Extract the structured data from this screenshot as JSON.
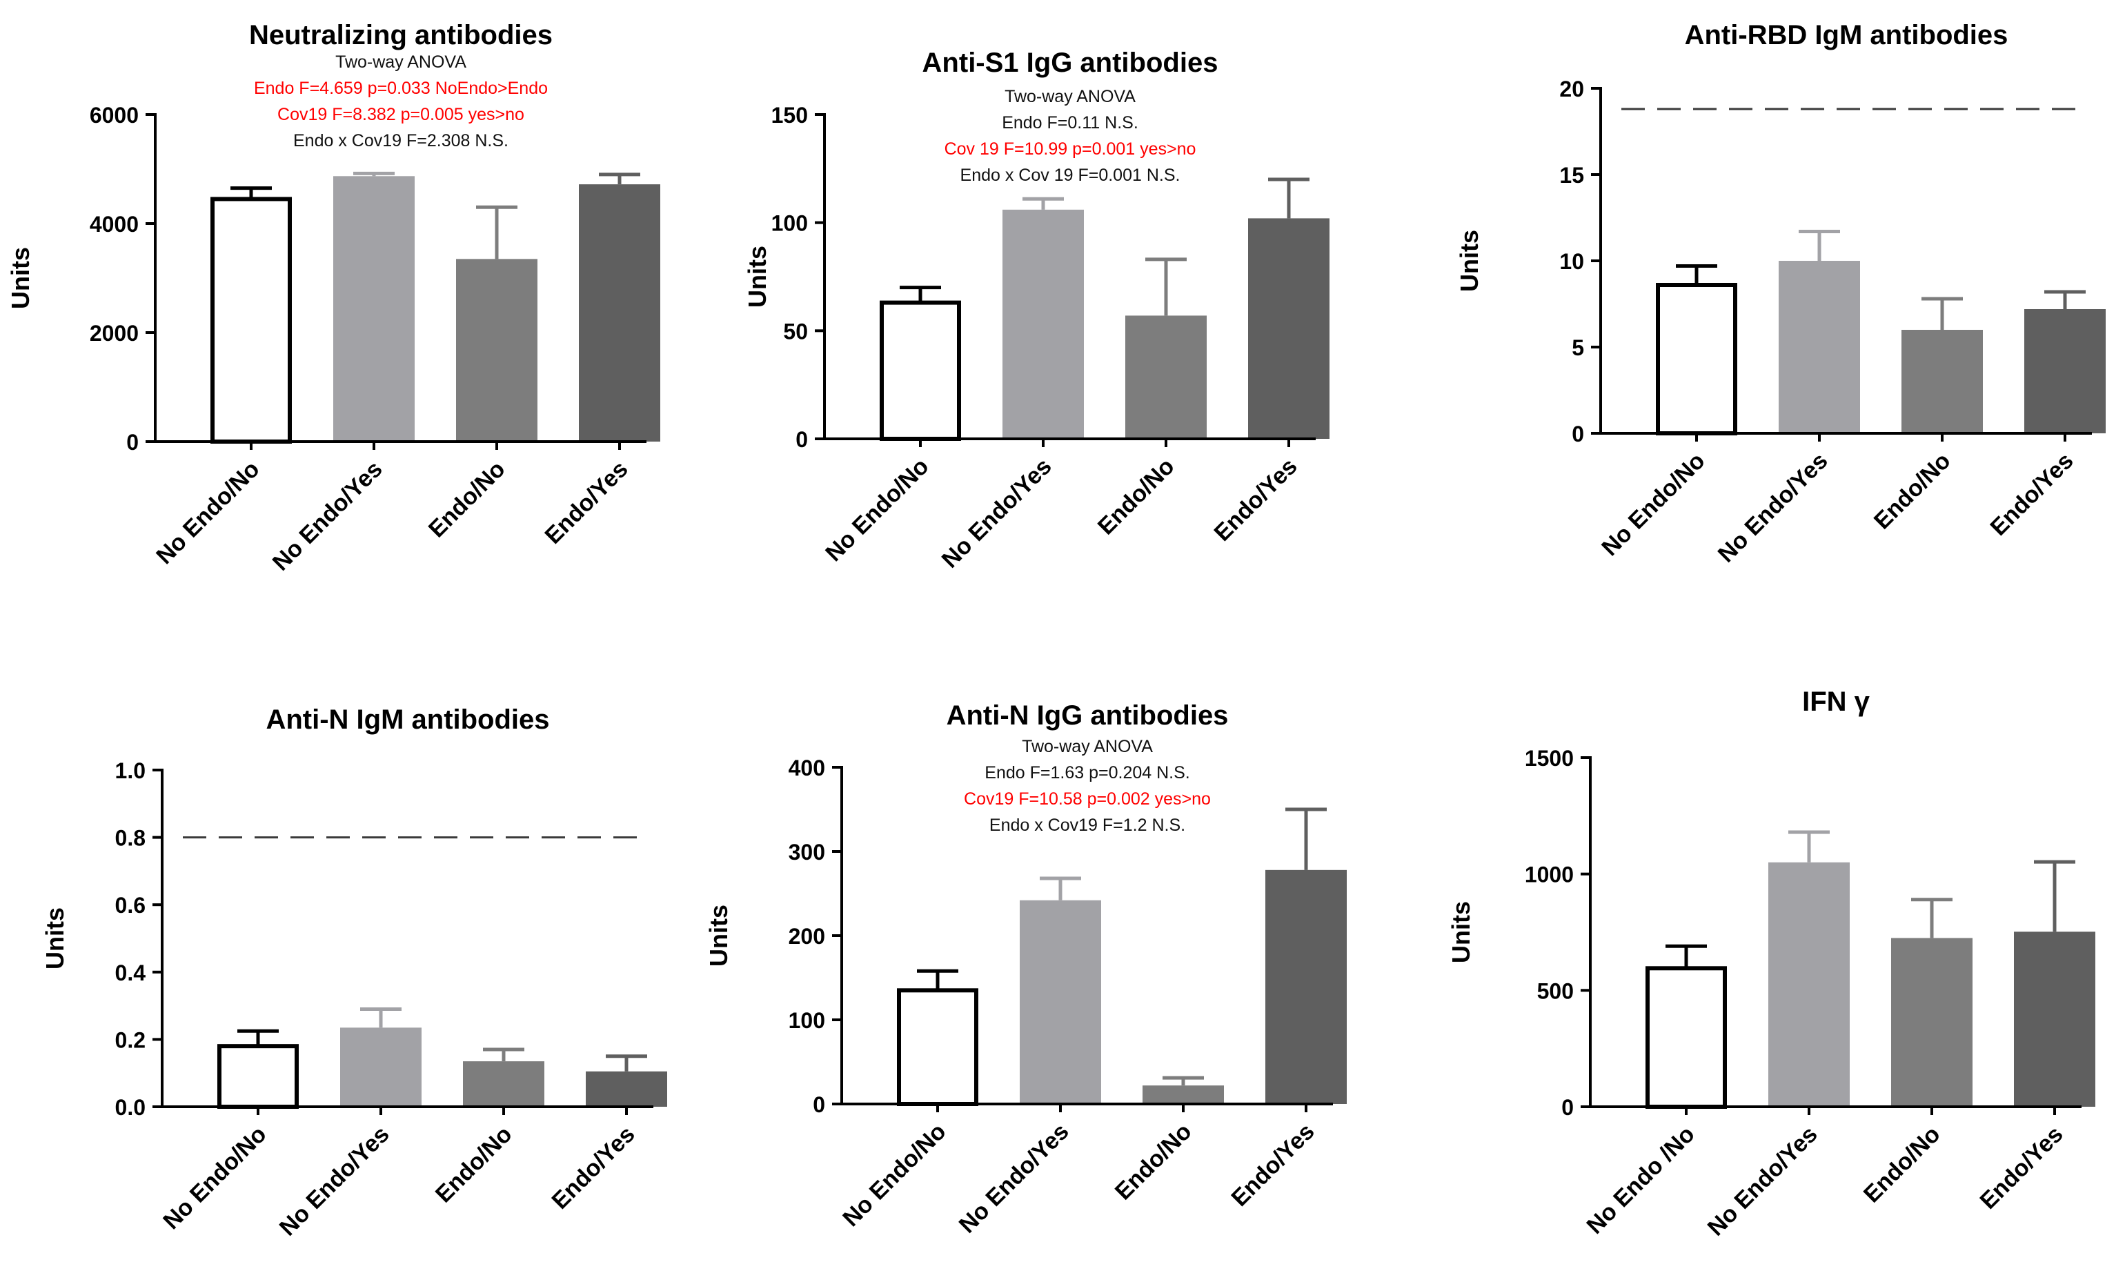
{
  "colors": {
    "bars": [
      "#ffffff",
      "#a2a2a6",
      "#7d7d7d",
      "#5f5f5f"
    ],
    "outline": "#000000",
    "stat_red": "#ff0000",
    "stat_black": "#111111",
    "reference_line": "#3a3a3a"
  },
  "chart_data": [
    {
      "type": "bar",
      "title": "Neutralizing antibodies",
      "ylabel": "Units",
      "categories": [
        "No Endo/No",
        "No Endo/Yes",
        "Endo/No",
        "Endo/Yes"
      ],
      "values": [
        4450,
        4870,
        3350,
        4720
      ],
      "errors": [
        200,
        50,
        950,
        180
      ],
      "ylim": [
        0,
        6000
      ],
      "yticks": [
        "0",
        "2000",
        "4000",
        "6000"
      ],
      "ytick_values": [
        0,
        2000,
        4000,
        6000
      ],
      "reference_line": null,
      "annotations": [
        {
          "text": "Two-way ANOVA",
          "color": "black"
        },
        {
          "text": "Endo   F=4.659 p=0.033 NoEndo>Endo",
          "color": "red"
        },
        {
          "text": "Cov19 F=8.382 p=0.005      yes>no",
          "color": "red"
        },
        {
          "text": "Endo x Cov19 F=2.308 N.S.",
          "color": "black"
        }
      ]
    },
    {
      "type": "bar",
      "title": "Anti-S1 IgG antibodies",
      "ylabel": "Units",
      "categories": [
        "No Endo/No",
        "No Endo/Yes",
        "Endo/No",
        "Endo/Yes"
      ],
      "values": [
        63,
        106,
        57,
        102
      ],
      "errors": [
        7,
        5,
        26,
        18
      ],
      "ylim": [
        0,
        150
      ],
      "yticks": [
        "0",
        "50",
        "100",
        "150"
      ],
      "ytick_values": [
        0,
        50,
        100,
        150
      ],
      "reference_line": null,
      "annotations": [
        {
          "text": "Two-way ANOVA",
          "color": "black"
        },
        {
          "text": "Endo   F=0.11 N.S.",
          "color": "black"
        },
        {
          "text": "Cov 19 F=10.99 p=0.001 yes>no",
          "color": "red"
        },
        {
          "text": "Endo  x Cov 19 F=0.001 N.S.",
          "color": "black"
        }
      ]
    },
    {
      "type": "bar",
      "title": "Anti-RBD IgM antibodies",
      "ylabel": "Units",
      "categories": [
        "No Endo/No",
        "No Endo/Yes",
        "Endo/No",
        "Endo/Yes"
      ],
      "values": [
        8.6,
        10.0,
        6.0,
        7.2
      ],
      "errors": [
        1.1,
        1.7,
        1.8,
        1.0
      ],
      "ylim": [
        0,
        20
      ],
      "yticks": [
        "0",
        "5",
        "10",
        "15",
        "20"
      ],
      "ytick_values": [
        0,
        5,
        10,
        15,
        20
      ],
      "reference_line": 18.8,
      "annotations": []
    },
    {
      "type": "bar",
      "title": "Anti-N IgM antibodies",
      "ylabel": "Units",
      "categories": [
        "No Endo/No",
        "No Endo/Yes",
        "Endo/No",
        "Endo/Yes"
      ],
      "values": [
        0.18,
        0.235,
        0.135,
        0.105
      ],
      "errors": [
        0.045,
        0.055,
        0.035,
        0.045
      ],
      "ylim": [
        0,
        1.0
      ],
      "yticks": [
        "0.0",
        "0.2",
        "0.4",
        "0.6",
        "0.8",
        "1.0"
      ],
      "ytick_values": [
        0,
        0.2,
        0.4,
        0.6,
        0.8,
        1.0
      ],
      "reference_line": 0.8,
      "annotations": []
    },
    {
      "type": "bar",
      "title": "Anti-N IgG antibodies",
      "ylabel": "Units",
      "categories": [
        "No Endo/No",
        "No Endo/Yes",
        "Endo/No",
        "Endo/Yes"
      ],
      "values": [
        135,
        242,
        22,
        278
      ],
      "errors": [
        23,
        26,
        9,
        72
      ],
      "ylim": [
        0,
        400
      ],
      "yticks": [
        "0",
        "100",
        "200",
        "300",
        "400"
      ],
      "ytick_values": [
        0,
        100,
        200,
        300,
        400
      ],
      "reference_line": null,
      "annotations": [
        {
          "text": "Two-way ANOVA",
          "color": "black"
        },
        {
          "text": "Endo   F=1.63 p=0.204 N.S.",
          "color": "black"
        },
        {
          "text": "Cov19 F=10.58 p=0.002  yes>no",
          "color": "red"
        },
        {
          "text": "Endo x Cov19 F=1.2 N.S.",
          "color": "black"
        }
      ]
    },
    {
      "type": "bar",
      "title": "IFN γ",
      "ylabel": "Units",
      "categories": [
        "No Endo /No",
        "No Endo/Yes",
        "Endo/No",
        "Endo/Yes"
      ],
      "values": [
        595,
        1050,
        725,
        752
      ],
      "errors": [
        95,
        130,
        165,
        300
      ],
      "ylim": [
        0,
        1500
      ],
      "yticks": [
        "0",
        "500",
        "1000",
        "1500"
      ],
      "ytick_values": [
        0,
        500,
        1000,
        1500
      ],
      "reference_line": null,
      "annotations": []
    }
  ]
}
